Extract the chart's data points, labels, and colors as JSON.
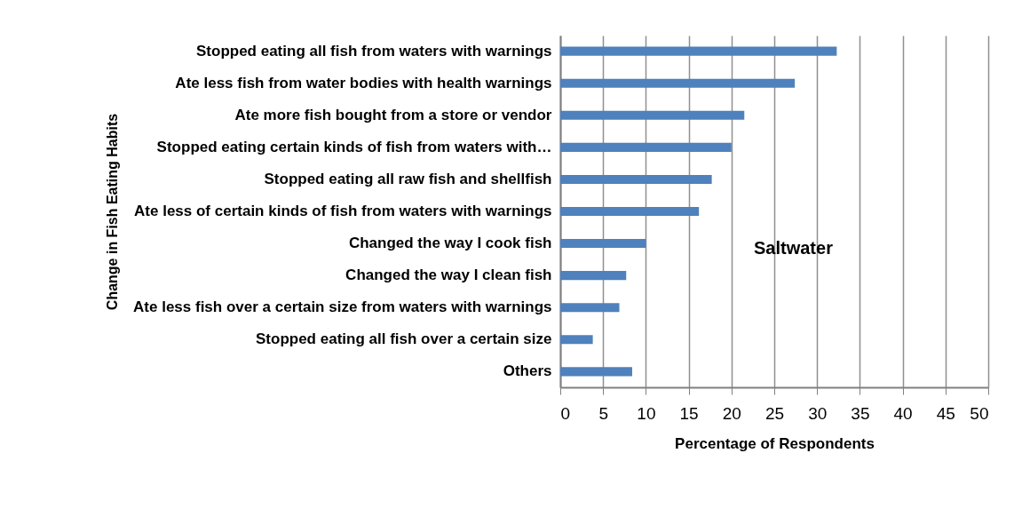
{
  "chart_data": {
    "type": "bar",
    "orientation": "horizontal",
    "ylabel": "Change in Fish Eating Habits",
    "xlabel": "Percentage of Respondents",
    "categories": [
      "Stopped eating all fish from waters with warnings",
      "Ate less fish from water bodies with health warnings",
      "Ate more fish bought from a store or vendor",
      "Stopped eating certain kinds of fish from waters with…",
      "Stopped eating all raw fish and shellfish",
      "Ate less of certain kinds of fish from waters with warnings",
      "Changed the way I cook fish",
      "Changed the way I clean fish",
      "Ate less fish over a certain size from waters with warnings",
      "Stopped eating all fish over a certain size",
      "Others"
    ],
    "values": [
      32.3,
      27.4,
      21.5,
      20.0,
      17.7,
      16.2,
      10.0,
      7.7,
      6.9,
      3.8,
      8.4
    ],
    "color": "#4f81bd",
    "xlim": [
      0,
      50
    ],
    "xticks": [
      0,
      5,
      10,
      15,
      20,
      25,
      30,
      35,
      40,
      45,
      50
    ],
    "grid": "x",
    "annotations": [
      "Saltwater"
    ]
  }
}
